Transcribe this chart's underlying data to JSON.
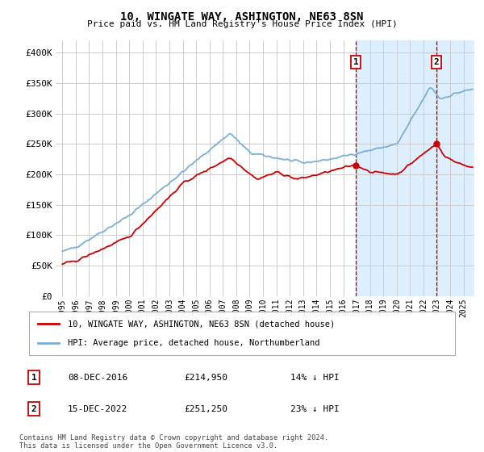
{
  "title": "10, WINGATE WAY, ASHINGTON, NE63 8SN",
  "subtitle": "Price paid vs. HM Land Registry's House Price Index (HPI)",
  "ylim": [
    0,
    420000
  ],
  "yticks": [
    0,
    50000,
    100000,
    150000,
    200000,
    250000,
    300000,
    350000,
    400000
  ],
  "ytick_labels": [
    "£0",
    "£50K",
    "£100K",
    "£150K",
    "£200K",
    "£250K",
    "£300K",
    "£350K",
    "£400K"
  ],
  "bg_color": "#ffffff",
  "plot_bg_color": "#ffffff",
  "grid_color": "#cccccc",
  "hpi_color": "#7ab0d4",
  "price_color": "#cc0000",
  "sale1_date": "08-DEC-2016",
  "sale1_price": 214950,
  "sale1_pct": "14% ↓ HPI",
  "sale2_date": "15-DEC-2022",
  "sale2_price": 251250,
  "sale2_pct": "23% ↓ HPI",
  "sale1_x": 2016.94,
  "sale2_x": 2022.96,
  "legend_label_red": "10, WINGATE WAY, ASHINGTON, NE63 8SN (detached house)",
  "legend_label_blue": "HPI: Average price, detached house, Northumberland",
  "footnote": "Contains HM Land Registry data © Crown copyright and database right 2024.\nThis data is licensed under the Open Government Licence v3.0.",
  "highlight_color": "#ddeeff",
  "dashed_line_color": "#cc0000",
  "xlim_left": 1994.5,
  "xlim_right": 2025.8
}
